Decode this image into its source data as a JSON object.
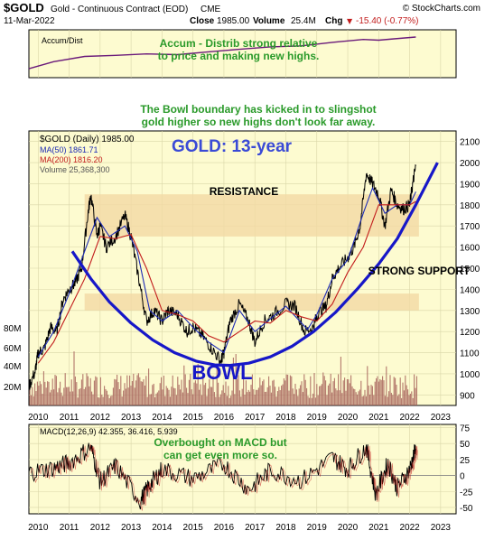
{
  "header": {
    "symbol": "$GOLD",
    "description": "Gold - Continuous Contract (EOD)",
    "exchange": "CME",
    "date": "11-Mar-2022",
    "close_label": "Close",
    "close_value": "1985.00",
    "volume_label": "Volume",
    "volume_value": "25.4M",
    "chg_label": "Chg",
    "chg_value": "-15.40 (-0.77%)",
    "chg_arrow": "▼",
    "copyright": "© StockCharts.com"
  },
  "accum_panel": {
    "legend": "Accum/Dist",
    "annotation_line1": "Accum - Distrib strong relative",
    "annotation_line2": "to price and making new highs."
  },
  "price_panel": {
    "legend_title": "$GOLD (Daily) 1985.00",
    "legend_ma50": "MA(50) 1861.71",
    "legend_ma200": "MA(200) 1816.20",
    "legend_volume": "Volume 25,368,300",
    "chart_title": "GOLD: 13-year",
    "note_line1": "The Bowl boundary has kicked in to slingshot",
    "note_line2": "gold higher so new highs don't look far away.",
    "resistance_label": "RESISTANCE",
    "support_label": "STRONG SUPPORT",
    "bowl_label": "BOWL",
    "y_ticks": [
      900,
      1000,
      1100,
      1200,
      1300,
      1400,
      1500,
      1600,
      1700,
      1800,
      1900,
      2000,
      2100
    ],
    "volume_ticks": [
      "20M",
      "40M",
      "60M",
      "80M"
    ]
  },
  "macd_panel": {
    "legend": "MACD(12,26,9) 42.355, 36.416, 5.939",
    "annotation_line1": "Overbought on MACD but",
    "annotation_line2": "can get  even more so.",
    "y_ticks": [
      -50,
      -25,
      0,
      25,
      50,
      75
    ]
  },
  "x_ticks": [
    "2010",
    "2011",
    "2012",
    "2013",
    "2014",
    "2015",
    "2016",
    "2017",
    "2018",
    "2019",
    "2020",
    "2021",
    "2022",
    "2023"
  ],
  "colors": {
    "panel_bg": "#fdfbd0",
    "price_line": "#000000",
    "ma50": "#1d2bb5",
    "ma200": "#c21c1c",
    "volume": "#a6605a",
    "accum_line": "#6a1a7a",
    "zone": "#f2d9a4",
    "bowl": "#1717c8",
    "annotation_green": "#2a9a2a",
    "title_blue": "#3a4ad6"
  },
  "chart_data": {
    "type": "line",
    "x_unit": "year",
    "ylim": [
      850,
      2150
    ],
    "price": {
      "x": [
        2009.7,
        2009.9,
        2010.0,
        2010.2,
        2010.4,
        2010.6,
        2010.8,
        2011.0,
        2011.2,
        2011.4,
        2011.6,
        2011.7,
        2011.9,
        2012.0,
        2012.2,
        2012.5,
        2012.8,
        2013.0,
        2013.25,
        2013.5,
        2013.75,
        2014.0,
        2014.2,
        2014.5,
        2014.8,
        2015.0,
        2015.3,
        2015.6,
        2015.9,
        2016.0,
        2016.2,
        2016.5,
        2016.8,
        2017.0,
        2017.3,
        2017.6,
        2018.0,
        2018.3,
        2018.6,
        2018.9,
        2019.0,
        2019.3,
        2019.5,
        2019.7,
        2020.0,
        2020.2,
        2020.4,
        2020.6,
        2020.8,
        2021.0,
        2021.2,
        2021.4,
        2021.6,
        2021.8,
        2022.0,
        2022.1,
        2022.2
      ],
      "values": [
        940,
        1010,
        1100,
        1120,
        1220,
        1200,
        1350,
        1400,
        1430,
        1500,
        1750,
        1850,
        1650,
        1700,
        1600,
        1650,
        1750,
        1650,
        1450,
        1250,
        1300,
        1250,
        1300,
        1280,
        1200,
        1220,
        1180,
        1120,
        1060,
        1100,
        1250,
        1330,
        1250,
        1150,
        1250,
        1280,
        1330,
        1320,
        1200,
        1220,
        1280,
        1320,
        1450,
        1500,
        1550,
        1600,
        1700,
        1950,
        1900,
        1850,
        1700,
        1870,
        1800,
        1780,
        1800,
        1900,
        1985
      ]
    },
    "ma50": {
      "x": [
        2010.0,
        2010.5,
        2011.0,
        2011.5,
        2011.9,
        2012.3,
        2012.8,
        2013.2,
        2013.6,
        2014.0,
        2014.5,
        2015.0,
        2015.5,
        2016.0,
        2016.5,
        2017.0,
        2017.5,
        2018.0,
        2018.7,
        2019.0,
        2019.5,
        2020.0,
        2020.5,
        2020.8,
        2021.2,
        2021.6,
        2022.0,
        2022.2
      ],
      "values": [
        1080,
        1200,
        1380,
        1580,
        1740,
        1650,
        1700,
        1580,
        1300,
        1250,
        1300,
        1220,
        1150,
        1100,
        1300,
        1200,
        1260,
        1320,
        1210,
        1280,
        1450,
        1540,
        1760,
        1880,
        1760,
        1800,
        1800,
        1862
      ]
    },
    "ma200": {
      "x": [
        2010.0,
        2010.5,
        2011.0,
        2011.5,
        2012.0,
        2012.5,
        2013.0,
        2013.5,
        2014.0,
        2014.5,
        2015.0,
        2015.5,
        2016.0,
        2016.5,
        2017.0,
        2017.5,
        2018.0,
        2018.5,
        2019.0,
        2019.5,
        2020.0,
        2020.5,
        2021.0,
        2021.5,
        2022.0,
        2022.2
      ],
      "values": [
        1050,
        1150,
        1300,
        1450,
        1650,
        1640,
        1660,
        1500,
        1300,
        1280,
        1250,
        1180,
        1150,
        1200,
        1250,
        1240,
        1300,
        1270,
        1250,
        1330,
        1480,
        1600,
        1800,
        1800,
        1800,
        1816
      ]
    },
    "bowl": {
      "x": [
        2011.1,
        2011.7,
        2012.3,
        2013.0,
        2013.7,
        2014.4,
        2015.1,
        2015.7,
        2016.2,
        2016.8,
        2017.5,
        2018.2,
        2018.9,
        2019.6,
        2020.3,
        2021.0,
        2021.6,
        2022.2,
        2022.9
      ],
      "values": [
        1580,
        1450,
        1340,
        1240,
        1160,
        1100,
        1060,
        1042,
        1040,
        1050,
        1080,
        1130,
        1200,
        1290,
        1400,
        1520,
        1640,
        1800,
        2000
      ]
    },
    "zones": [
      {
        "name": "resistance",
        "low": 1650,
        "high": 1850
      },
      {
        "name": "strong support",
        "low": 1300,
        "high": 1380
      }
    ],
    "accum_dist": {
      "x": [
        2009.7,
        2010.5,
        2011.5,
        2012.5,
        2013.5,
        2014.5,
        2015.5,
        2016.5,
        2017.5,
        2018.5,
        2019.5,
        2020.5,
        2021.0,
        2021.5,
        2022.2
      ],
      "values": [
        10,
        30,
        45,
        48,
        52,
        50,
        58,
        65,
        72,
        75,
        85,
        93,
        91,
        95,
        100
      ]
    },
    "macd": {
      "ylim": [
        -60,
        80
      ],
      "x": [
        2009.7,
        2010.5,
        2011.0,
        2011.7,
        2012.0,
        2012.5,
        2013.3,
        2013.6,
        2014.0,
        2015.0,
        2016.0,
        2016.8,
        2017.5,
        2018.5,
        2019.5,
        2020.0,
        2020.6,
        2020.9,
        2021.3,
        2021.6,
        2022.0,
        2022.2
      ],
      "values": [
        5,
        12,
        20,
        45,
        -10,
        15,
        -40,
        -15,
        10,
        -5,
        18,
        -22,
        8,
        -8,
        28,
        10,
        45,
        -30,
        20,
        -20,
        10,
        42
      ]
    }
  }
}
